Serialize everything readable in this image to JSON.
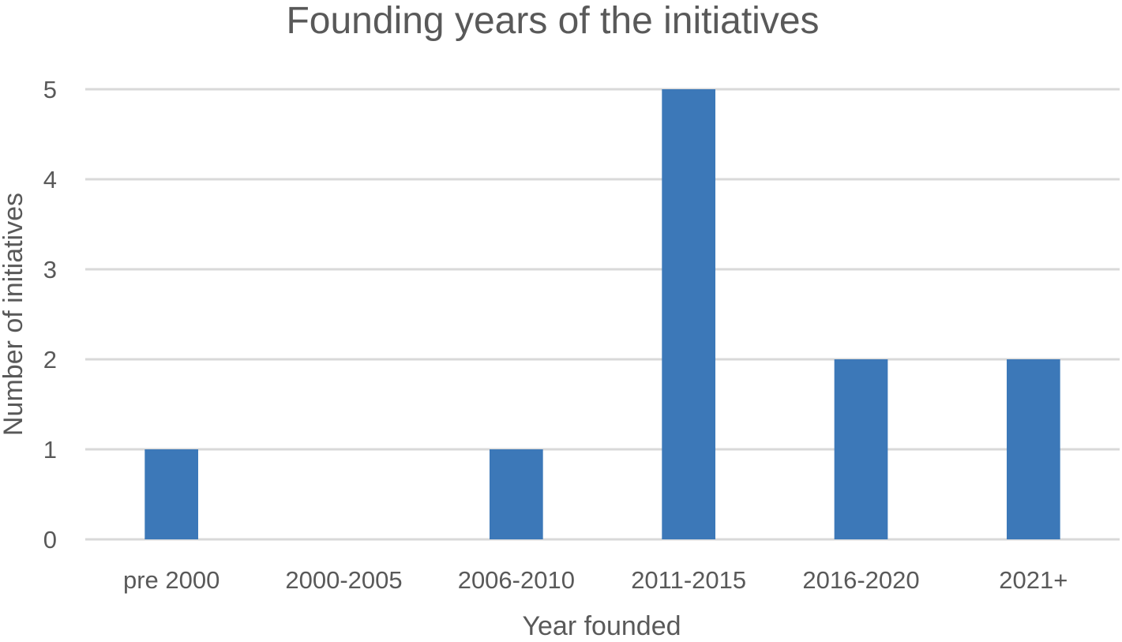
{
  "chart_data": {
    "type": "bar",
    "title": "Founding years of the initiatives",
    "xlabel": "Year founded",
    "ylabel": "Number of initiatives",
    "categories": [
      "pre 2000",
      "2000-2005",
      "2006-2010",
      "2011-2015",
      "2016-2020",
      "2021+"
    ],
    "series": [
      {
        "values": [
          1,
          0,
          1,
          5,
          2,
          2
        ]
      }
    ],
    "ylim": [
      0,
      5
    ],
    "yticks": [
      "0",
      "1",
      "2",
      "3",
      "4",
      "5"
    ],
    "grid": true,
    "legend": "none",
    "colors": {
      "bar": "#3c78b8",
      "grid": "#d9d9d9",
      "text": "#595959"
    }
  }
}
